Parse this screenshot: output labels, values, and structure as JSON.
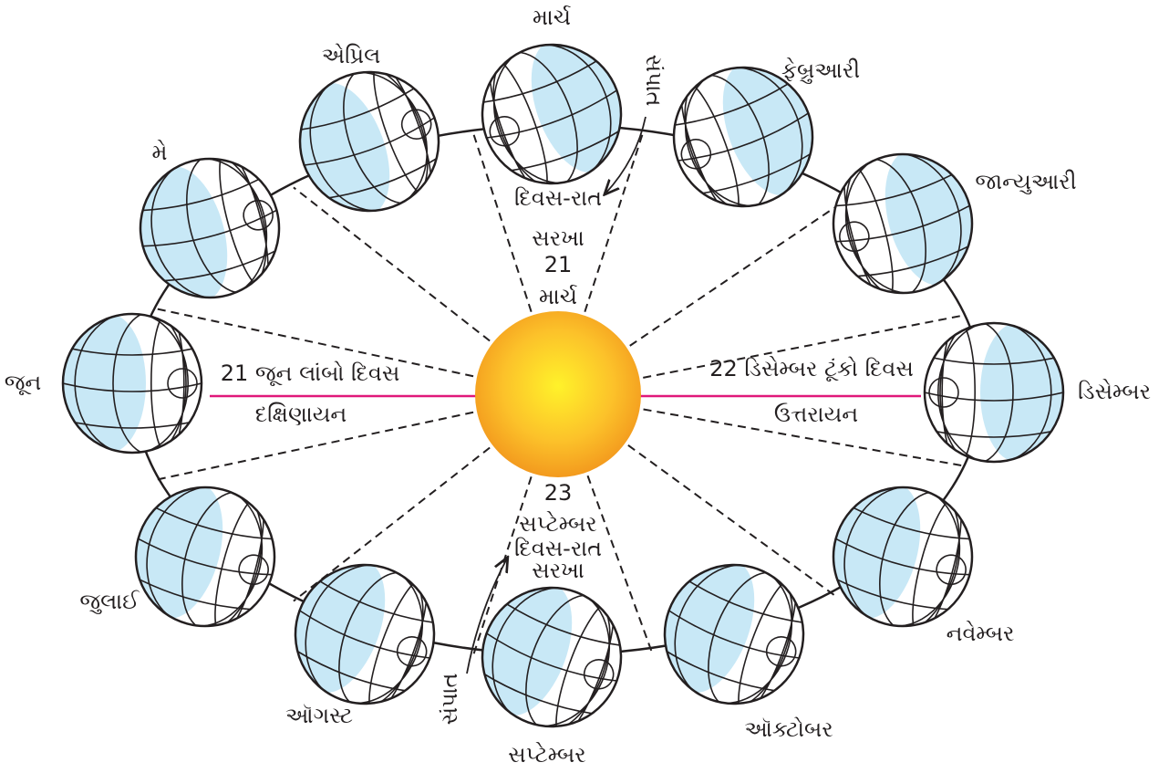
{
  "months": [
    "માર્ચ",
    "ફેબ્રુઆરી",
    "જાન્યુઆરી",
    "ડિસેમ્બર",
    "નવેમ્બર",
    "ઑક્ટોબર",
    "સપ્ટેમ્બર",
    "ઑગસ્ટ",
    "જુલાઈ",
    "જૂન",
    "મે",
    "એપ્રિલ"
  ],
  "equinox_top": {
    "label": "સંપાત",
    "line1": "દિવસ-રાત",
    "line2": "સરખા",
    "date": "21",
    "month": "માર્ચ"
  },
  "solstice_left": {
    "title": "21 જૂન લાંબો દિવસ",
    "subtitle": "દક્ષિણાયન"
  },
  "solstice_right": {
    "title": "22 ડિસેમ્બર ટૂંકો દિવસ",
    "subtitle": "ઉત્તરાયન"
  },
  "equinox_bottom": {
    "date": "23",
    "month": "સપ્ટેમ્બર",
    "line1": "દિવસ-રાત",
    "line2": "સરખા",
    "label": "સંપાત"
  }
}
